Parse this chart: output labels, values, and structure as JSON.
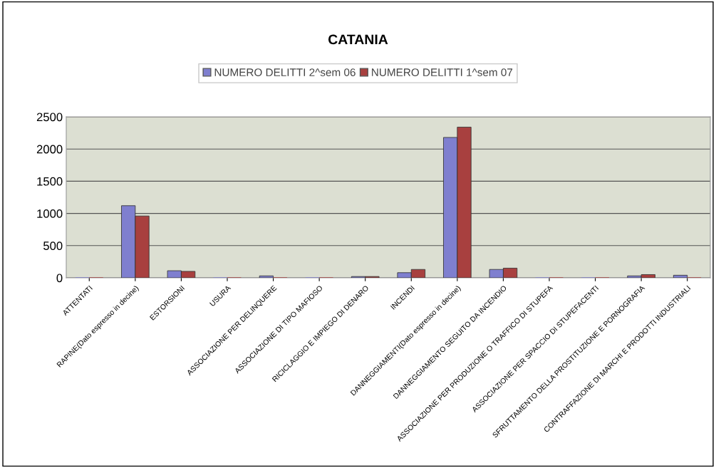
{
  "chart_data": {
    "type": "bar",
    "title": "CATANIA",
    "categories": [
      "ATTENTATI",
      "RAPINE(Dato espresso in decine)",
      "ESTORSIONI",
      "USURA",
      "ASSOCIAZIONE PER DELINQUERE",
      "ASSOCIAZIONE DI TIPO MAFIOSO",
      "RICICLAGGIO E IMPIEGO DI DENARO",
      "INCENDI",
      "DANNEGGIAMENTI(Dato espresso in decine)",
      "DANNEGGIAMENTO SEGUITO DA INCENDIO",
      "ASSOCIAZIONE PER PRODUZIONE O TRAFFICO DI STUPEFA",
      "ASSOCIAZIONE PER SPACCIO DI STUPEFACENTI",
      "SFRUTTAMENTO DELLA PROSTITUZIONE E PORNOGRAFIA",
      "CONTRAFFAZIONE DI MARCHI E PRODOTTI INDUSTRIALI"
    ],
    "series": [
      {
        "name": "NUMERO DELITTI 2^sem 06",
        "color": "#7f7fcf",
        "values": [
          0,
          1120,
          110,
          0,
          30,
          0,
          20,
          80,
          2180,
          130,
          0,
          0,
          30,
          40
        ]
      },
      {
        "name": "NUMERO DELITTI 1^sem 07",
        "color": "#a8403f",
        "values": [
          0,
          960,
          100,
          0,
          0,
          0,
          20,
          130,
          2340,
          150,
          0,
          0,
          50,
          0
        ]
      }
    ],
    "ylim": [
      0,
      2500
    ],
    "yticks": [
      0,
      500,
      1000,
      1500,
      2000,
      2500
    ],
    "grid": "y",
    "legend": "top"
  }
}
